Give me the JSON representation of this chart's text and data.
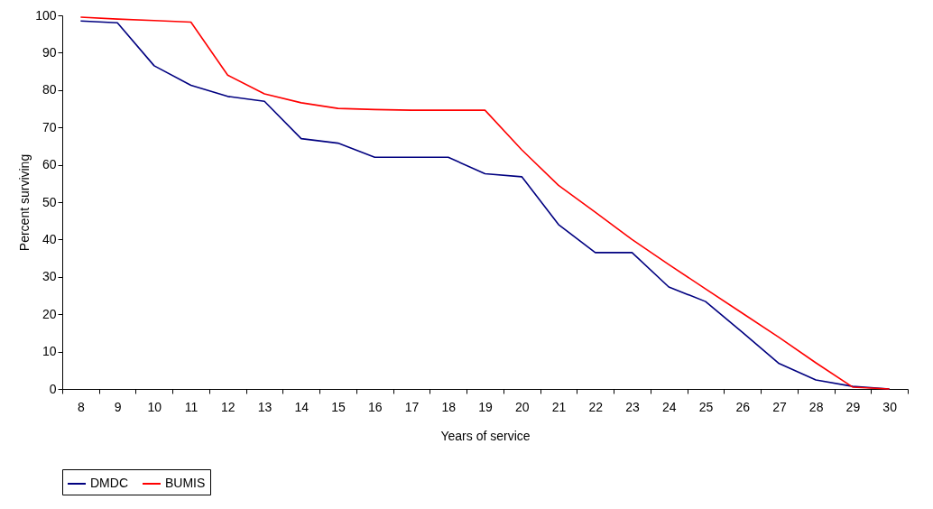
{
  "chart_data": {
    "type": "line",
    "xlabel": "Years of service",
    "ylabel": "Percent surviving",
    "categories": [
      "8",
      "9",
      "10",
      "11",
      "12",
      "13",
      "14",
      "15",
      "16",
      "17",
      "18",
      "19",
      "20",
      "21",
      "22",
      "23",
      "24",
      "25",
      "26",
      "27",
      "28",
      "29",
      "30"
    ],
    "ylim": [
      0,
      100
    ],
    "yticks": [
      0,
      10,
      20,
      30,
      40,
      50,
      60,
      70,
      80,
      90,
      100
    ],
    "grid": false,
    "legend": "bottom",
    "marker": "none",
    "series": [
      {
        "name": "DMDC",
        "color": "#000080",
        "values": [
          98.5,
          98,
          86.5,
          81.3,
          78.3,
          77,
          67,
          65.8,
          62,
          62,
          62,
          57.6,
          56.8,
          44,
          36.5,
          36.5,
          27.3,
          23.4,
          15.2,
          6.8,
          2.4,
          0.7,
          0
        ]
      },
      {
        "name": "BUMIS",
        "color": "#ff0000",
        "values": [
          99.5,
          99,
          98.6,
          98.2,
          84,
          79,
          76.6,
          75.1,
          74.8,
          74.6,
          74.6,
          74.6,
          64,
          54.5,
          47.3,
          40,
          33.3,
          26.8,
          20.3,
          13.8,
          7,
          0.5,
          0
        ]
      }
    ]
  }
}
